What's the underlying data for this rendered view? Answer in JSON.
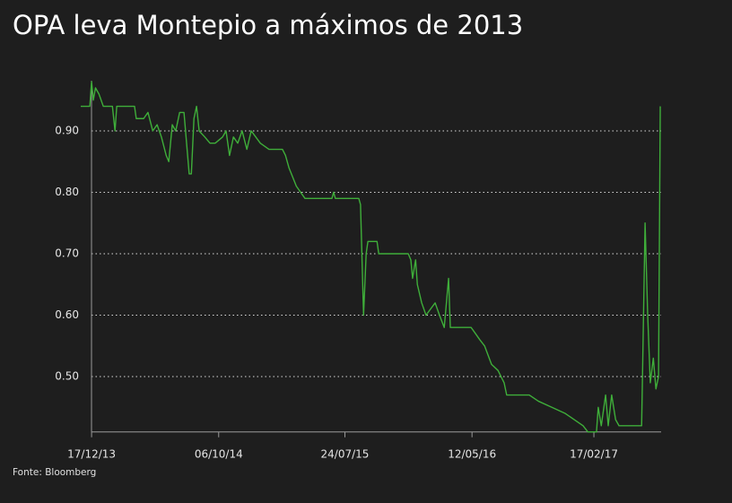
{
  "chart_data": {
    "type": "line",
    "title": "OPA leva Montepio a máximos de 2013",
    "source": "Fonte: Bloomberg",
    "x": [
      "2013-11-22",
      "2013-12-13",
      "2013-12-17",
      "2013-12-21",
      "2013-12-26",
      "2014-01-03",
      "2014-01-13",
      "2014-02-03",
      "2014-02-09",
      "2014-02-13",
      "2014-03-26",
      "2014-03-30",
      "2014-04-16",
      "2014-04-26",
      "2014-05-07",
      "2014-05-17",
      "2014-05-27",
      "2014-06-07",
      "2014-06-13",
      "2014-06-21",
      "2014-06-29",
      "2014-07-08",
      "2014-07-18",
      "2014-07-24",
      "2014-07-30",
      "2014-08-04",
      "2014-08-10",
      "2014-08-16",
      "2014-08-22",
      "2014-09-04",
      "2014-09-16",
      "2014-09-28",
      "2014-10-15",
      "2014-10-23",
      "2014-10-31",
      "2014-11-09",
      "2014-11-19",
      "2014-11-29",
      "2014-12-10",
      "2014-12-20",
      "2015-01-10",
      "2015-01-30",
      "2015-03-02",
      "2015-03-09",
      "2015-03-17",
      "2015-04-03",
      "2015-04-13",
      "2015-04-23",
      "2015-06-24",
      "2015-06-28",
      "2015-07-02",
      "2015-08-25",
      "2015-08-29",
      "2015-09-05",
      "2015-09-11",
      "2015-09-15",
      "2015-10-06",
      "2015-10-10",
      "2015-12-17",
      "2015-12-23",
      "2015-12-27",
      "2016-01-03",
      "2016-01-07",
      "2016-01-17",
      "2016-01-27",
      "2016-02-17",
      "2016-02-27",
      "2016-03-09",
      "2016-03-19",
      "2016-03-23",
      "2016-05-10",
      "2016-05-20",
      "2016-05-30",
      "2016-06-10",
      "2016-06-26",
      "2016-07-11",
      "2016-07-25",
      "2016-07-31",
      "2016-09-21",
      "2016-10-12",
      "2016-11-12",
      "2016-12-13",
      "2017-01-23",
      "2017-02-03",
      "2017-02-23",
      "2017-02-27",
      "2017-03-06",
      "2017-03-16",
      "2017-03-22",
      "2017-03-30",
      "2017-04-08",
      "2017-04-16",
      "2017-06-07",
      "2017-06-09",
      "2017-06-15",
      "2017-06-21",
      "2017-06-27",
      "2017-07-04",
      "2017-07-10",
      "2017-07-16",
      "2017-07-20"
    ],
    "series": [
      {
        "name": "Montepio",
        "color": "#3fae3a",
        "values": [
          0.94,
          0.94,
          0.98,
          0.95,
          0.97,
          0.96,
          0.94,
          0.94,
          0.9,
          0.94,
          0.94,
          0.92,
          0.92,
          0.93,
          0.9,
          0.91,
          0.89,
          0.86,
          0.85,
          0.91,
          0.9,
          0.93,
          0.93,
          0.88,
          0.83,
          0.83,
          0.92,
          0.94,
          0.9,
          0.89,
          0.88,
          0.88,
          0.89,
          0.9,
          0.86,
          0.89,
          0.88,
          0.9,
          0.87,
          0.9,
          0.88,
          0.87,
          0.87,
          0.86,
          0.84,
          0.81,
          0.8,
          0.79,
          0.79,
          0.8,
          0.79,
          0.79,
          0.78,
          0.6,
          0.7,
          0.72,
          0.72,
          0.7,
          0.7,
          0.69,
          0.66,
          0.69,
          0.65,
          0.62,
          0.6,
          0.62,
          0.6,
          0.58,
          0.66,
          0.58,
          0.58,
          0.57,
          0.56,
          0.55,
          0.52,
          0.51,
          0.49,
          0.47,
          0.47,
          0.46,
          0.45,
          0.44,
          0.42,
          0.41,
          0.41,
          0.45,
          0.42,
          0.47,
          0.42,
          0.47,
          0.43,
          0.42,
          0.42,
          0.5,
          0.75,
          0.6,
          0.49,
          0.53,
          0.48,
          0.5,
          0.94
        ]
      }
    ],
    "xlim": [
      "2013-11-22",
      "2017-07-22"
    ],
    "xticks": [
      {
        "value": "2013-12-17",
        "label": "17/12/13"
      },
      {
        "value": "2014-10-06",
        "label": "06/10/14"
      },
      {
        "value": "2015-07-24",
        "label": "24/07/15"
      },
      {
        "value": "2016-05-12",
        "label": "12/05/16"
      },
      {
        "value": "2017-02-17",
        "label": "17/02/17"
      }
    ],
    "ylim": [
      0.41,
      0.99
    ],
    "yticks": [
      {
        "value": 0.5,
        "label": "0.50"
      },
      {
        "value": 0.6,
        "label": "0.60"
      },
      {
        "value": 0.7,
        "label": "0.70"
      },
      {
        "value": 0.8,
        "label": "0.80"
      },
      {
        "value": 0.9,
        "label": "0.90"
      }
    ],
    "grid": true
  }
}
